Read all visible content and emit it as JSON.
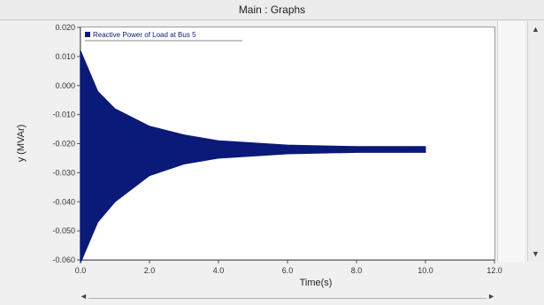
{
  "window": {
    "title": "Main : Graphs"
  },
  "legend": {
    "label": "Reactive Power of Load at Bus 5"
  },
  "icons": {
    "scroll_up": "up-arrow-icon",
    "scroll_down": "down-arrow-icon",
    "scroll_left": "left-arrow-icon",
    "scroll_right": "right-arrow-icon"
  },
  "chart_data": {
    "type": "line",
    "title": "",
    "xlabel": "Time(s)",
    "ylabel": "y (MVAr)",
    "xlim": [
      0,
      120
    ],
    "ylim": [
      -0.06,
      0.02
    ],
    "x_ticks": [
      0,
      20,
      40,
      60,
      80,
      100,
      120
    ],
    "x_tick_labels": [
      "0.0",
      "2.0",
      "4.0",
      "6.0",
      "8.0",
      "10.0",
      "12.0"
    ],
    "y_ticks": [
      0.02,
      0.01,
      0.0,
      -0.01,
      -0.02,
      -0.03,
      -0.04,
      -0.05,
      -0.06
    ],
    "y_tick_labels": [
      "0.020",
      "0.010",
      "0.000",
      "-0.010",
      "-0.020",
      "-0.030",
      "-0.040",
      "-0.050",
      "-0.060"
    ],
    "grid": false,
    "legend_position": "top-left",
    "series": [
      {
        "name": "Reactive Power of Load at Bus 5",
        "color": "#0b1a78",
        "steady_value": -0.022,
        "upper_envelope": {
          "x": [
            0,
            5,
            10,
            20,
            30,
            40,
            60,
            80,
            100
          ],
          "y": [
            0.012,
            -0.002,
            -0.008,
            -0.014,
            -0.017,
            -0.019,
            -0.0205,
            -0.021,
            -0.021
          ]
        },
        "lower_envelope": {
          "x": [
            0,
            5,
            10,
            20,
            30,
            40,
            60,
            80,
            100
          ],
          "y": [
            -0.061,
            -0.047,
            -0.04,
            -0.031,
            -0.027,
            -0.025,
            -0.0235,
            -0.023,
            -0.023
          ]
        }
      }
    ]
  }
}
